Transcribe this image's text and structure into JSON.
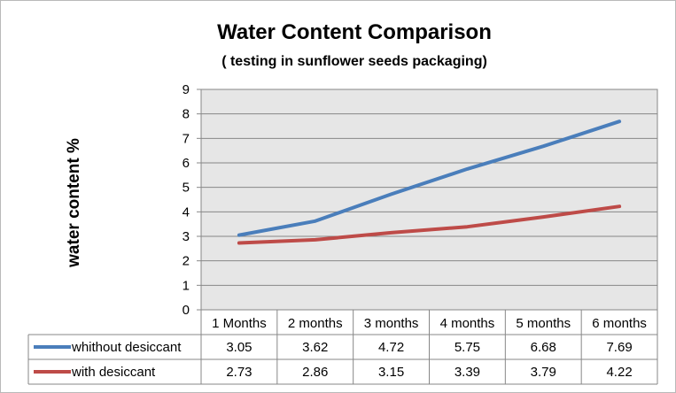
{
  "chart_data": {
    "type": "line",
    "title": "Water Content Comparison",
    "subtitle": "( testing in sunflower seeds packaging)",
    "ylabel": "water  content  %",
    "xlabel": "",
    "ylim": [
      0,
      9
    ],
    "yticks": [
      0,
      1,
      2,
      3,
      4,
      5,
      6,
      7,
      8,
      9
    ],
    "grid": true,
    "legend": "data-table",
    "categories": [
      "1 Months",
      "2 months",
      "3 months",
      "4 months",
      "5 months",
      "6 months"
    ],
    "series": [
      {
        "name": "whithout desiccant",
        "color": "#4a7ebb",
        "values": [
          3.05,
          3.62,
          4.72,
          5.75,
          6.68,
          7.69
        ]
      },
      {
        "name": "with desiccant",
        "color": "#be4b48",
        "values": [
          2.73,
          2.86,
          3.15,
          3.39,
          3.79,
          4.22
        ]
      }
    ]
  }
}
